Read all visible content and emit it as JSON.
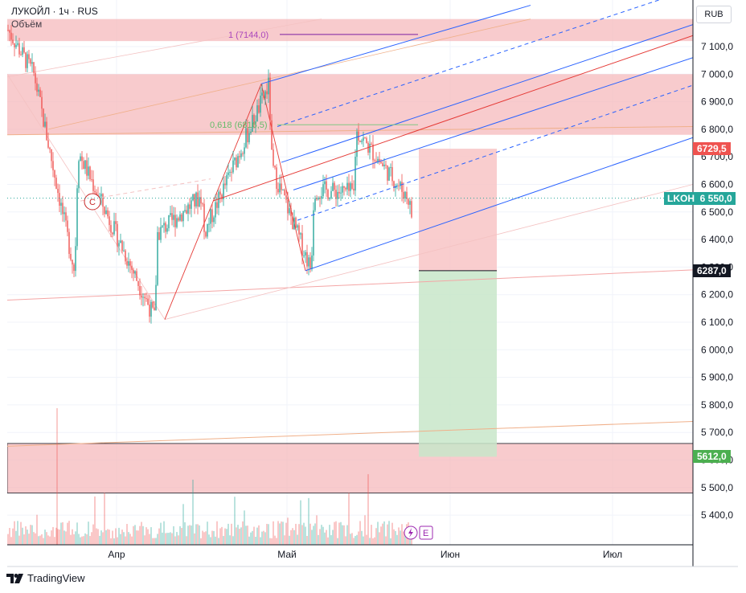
{
  "legend": {
    "symbol": "ЛУКОЙЛ · 1ч · RUS",
    "volume_label": "Объём"
  },
  "currency": "RUB",
  "footer": {
    "brand": "TradingView"
  },
  "colors": {
    "up": "#26a69a",
    "down": "#ef5350",
    "zone": "#f5b5b8",
    "pitchfork": "#2962ff",
    "median": "#e53935",
    "fib": "#81c784"
  },
  "chart_data": {
    "type": "candlestick",
    "title": "ЛУКОЙЛ · 1ч · RUS",
    "ylabel": "RUB",
    "ylim": [
      5400,
      7200
    ],
    "yticks": [
      5400,
      5500,
      5600,
      5700,
      5800,
      5900,
      6000,
      6100,
      6200,
      6300,
      6400,
      6500,
      6600,
      6700,
      6800,
      6900,
      7000,
      7100
    ],
    "xticks": [
      "Апр",
      "Май",
      "Июн",
      "Июл"
    ],
    "price_path": [
      {
        "t": "early-Mar",
        "price": 7160
      },
      {
        "t": "mid-Mar",
        "price": 7000
      },
      {
        "t": "late-Mar",
        "price": 6720
      },
      {
        "t": "late-Mar",
        "price": 6280
      },
      {
        "t": "early-Apr",
        "price": 6110
      },
      {
        "t": "early-Apr",
        "price": 6420
      },
      {
        "t": "mid-Apr",
        "price": 6560
      },
      {
        "t": "mid-Apr",
        "price": 6420
      },
      {
        "t": "late-Apr",
        "price": 6660
      },
      {
        "t": "late-Apr",
        "price": 6960
      },
      {
        "t": "late-Apr",
        "price": 6820
      },
      {
        "t": "early-May",
        "price": 6580
      },
      {
        "t": "early-May",
        "price": 6290
      },
      {
        "t": "early-May",
        "price": 6500
      },
      {
        "t": "mid-May",
        "price": 6790
      },
      {
        "t": "mid-May",
        "price": 6570
      },
      {
        "t": "mid-May",
        "price": 6720
      },
      {
        "t": "late-May",
        "price": 6490
      },
      {
        "t": "late-May",
        "price": 6550
      }
    ],
    "last_price": {
      "label": "LKOH",
      "value": 6550.0
    },
    "annotations": [
      {
        "type": "fib_level",
        "ratio": "1",
        "price": 7144.0,
        "text": "1 (7144,0)"
      },
      {
        "type": "fib_level",
        "ratio": "0,618",
        "price": 6816.5,
        "text": "0,618 (6816,5)"
      },
      {
        "type": "label",
        "text": "C"
      }
    ],
    "zones": [
      {
        "from": 7120,
        "to": 7200
      },
      {
        "from": 6780,
        "to": 7000
      },
      {
        "from": 5480,
        "to": 5660
      }
    ],
    "position": {
      "target": 6729.5,
      "entry": 6287.0,
      "stop": 5612.0
    },
    "price_tags": [
      {
        "value": "6729,5",
        "color": "#ef5350"
      },
      {
        "value": "6287,0",
        "color": "#131722"
      },
      {
        "value": "5612,0",
        "color": "#4caf50"
      }
    ],
    "grid": true
  }
}
